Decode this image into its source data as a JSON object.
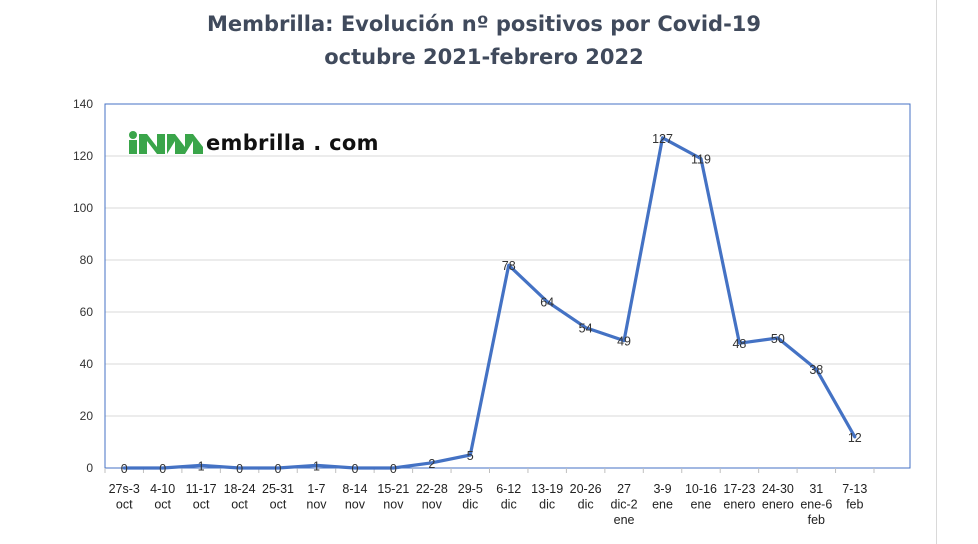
{
  "title_line1": "Membrilla: Evolución nº positivos por Covid-19",
  "title_line2": "octubre 2021-febrero 2022",
  "watermark": "embrilla . com",
  "colors": {
    "line": "#4472c4",
    "title": "#404a5c",
    "grid": "#d9d9d9",
    "logo_green": "#3aa54a"
  },
  "chart_data": {
    "type": "line",
    "title": "Membrilla: Evolución nº positivos por Covid-19 octubre 2021-febrero 2022",
    "xlabel": "",
    "ylabel": "",
    "ylim": [
      0,
      140
    ],
    "yticks": [
      0,
      20,
      40,
      60,
      80,
      100,
      120,
      140
    ],
    "grid": true,
    "legend": "none",
    "categories": [
      [
        "27s-3",
        "oct"
      ],
      [
        "4-10",
        "oct"
      ],
      [
        "11-17",
        "oct"
      ],
      [
        "18-24",
        "oct"
      ],
      [
        "25-31",
        "oct"
      ],
      [
        "1-7",
        "nov"
      ],
      [
        "8-14",
        "nov"
      ],
      [
        "15-21",
        "nov"
      ],
      [
        "22-28",
        "nov"
      ],
      [
        "29-5",
        "dic"
      ],
      [
        "6-12",
        "dic"
      ],
      [
        "13-19",
        "dic"
      ],
      [
        "20-26",
        "dic"
      ],
      [
        "27",
        "dic-2",
        "ene"
      ],
      [
        "3-9",
        "ene"
      ],
      [
        "10-16",
        "ene"
      ],
      [
        "17-23",
        "enero"
      ],
      [
        "24-30",
        "enero"
      ],
      [
        "31",
        "ene-6",
        "feb"
      ],
      [
        "7-13",
        "feb"
      ]
    ],
    "values": [
      0,
      0,
      1,
      0,
      0,
      1,
      0,
      0,
      2,
      5,
      78,
      64,
      54,
      49,
      127,
      119,
      48,
      50,
      38,
      12
    ],
    "data_labels": [
      0,
      0,
      1,
      0,
      0,
      1,
      0,
      0,
      2,
      5,
      78,
      64,
      54,
      49,
      127,
      119,
      48,
      50,
      38,
      12
    ]
  }
}
